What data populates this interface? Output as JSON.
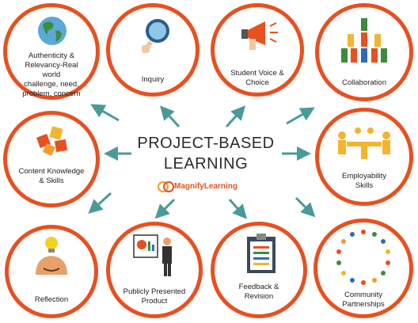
{
  "center": {
    "title": "PROJECT-BASED\nLEARNING",
    "brand": "MagnifyLearning"
  },
  "nodes": [
    {
      "label": "Authenticity &\nRelevancy-Real world\nchallenge, need,\nproblem, concern",
      "icon": "globe-icon"
    },
    {
      "label": "Inquiry",
      "icon": "magnifying-glass-icon"
    },
    {
      "label": "Student Voice &\nChoice",
      "icon": "megaphone-icon"
    },
    {
      "label": "Collaboration",
      "icon": "people-pyramid-icon"
    },
    {
      "label": "Content Knowledge\n& Skills",
      "icon": "puzzle-pieces-icon"
    },
    {
      "label": "Employability\nSkills",
      "icon": "meeting-table-icon"
    },
    {
      "label": "Reflection",
      "icon": "head-lightbulb-icon"
    },
    {
      "label": "Publicly Presented\nProduct",
      "icon": "presenter-chart-icon"
    },
    {
      "label": "Feedback &\nRevision",
      "icon": "clipboard-icon"
    },
    {
      "label": "Community\nPartnerships",
      "icon": "people-circle-icon"
    }
  ],
  "colors": {
    "ring": "#e8501f",
    "arrow": "#4a9a9a",
    "text": "#1f1f1f"
  }
}
